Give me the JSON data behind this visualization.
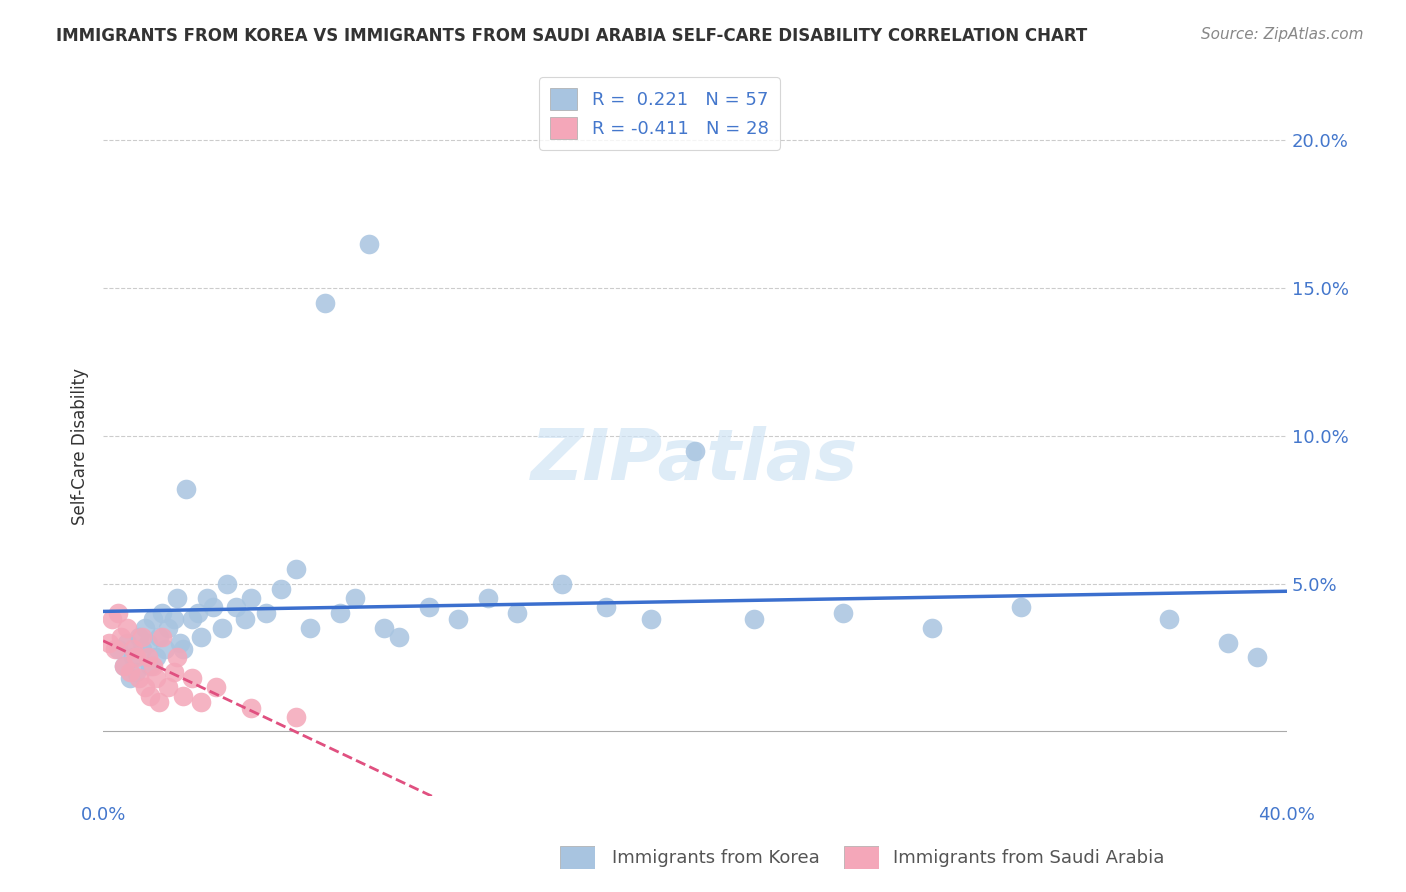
{
  "title": "IMMIGRANTS FROM KOREA VS IMMIGRANTS FROM SAUDI ARABIA SELF-CARE DISABILITY CORRELATION CHART",
  "source": "Source: ZipAtlas.com",
  "ylabel": "Self-Care Disability",
  "yticks": [
    0.0,
    0.05,
    0.1,
    0.15,
    0.2
  ],
  "ytick_labels": [
    "",
    "5.0%",
    "10.0%",
    "15.0%",
    "20.0%"
  ],
  "xlim": [
    0.0,
    0.4
  ],
  "ylim": [
    -0.022,
    0.215
  ],
  "legend_korea_R": "0.221",
  "legend_korea_N": "57",
  "legend_saudi_R": "-0.411",
  "legend_saudi_N": "28",
  "korea_color": "#a8c4e0",
  "saudi_color": "#f4a7b9",
  "korea_line_color": "#3b6fce",
  "saudi_line_color": "#e05080",
  "watermark": "ZIPatlas",
  "korea_x": [
    0.005,
    0.007,
    0.008,
    0.009,
    0.01,
    0.011,
    0.012,
    0.013,
    0.014,
    0.015,
    0.016,
    0.017,
    0.018,
    0.019,
    0.02,
    0.021,
    0.022,
    0.024,
    0.025,
    0.026,
    0.027,
    0.028,
    0.03,
    0.032,
    0.033,
    0.035,
    0.037,
    0.04,
    0.042,
    0.045,
    0.048,
    0.05,
    0.055,
    0.06,
    0.065,
    0.07,
    0.075,
    0.08,
    0.085,
    0.09,
    0.095,
    0.1,
    0.11,
    0.12,
    0.13,
    0.14,
    0.155,
    0.17,
    0.185,
    0.2,
    0.22,
    0.25,
    0.28,
    0.31,
    0.36,
    0.38,
    0.39
  ],
  "korea_y": [
    0.028,
    0.022,
    0.03,
    0.018,
    0.025,
    0.02,
    0.032,
    0.028,
    0.035,
    0.03,
    0.022,
    0.038,
    0.025,
    0.032,
    0.04,
    0.028,
    0.035,
    0.038,
    0.045,
    0.03,
    0.028,
    0.082,
    0.038,
    0.04,
    0.032,
    0.045,
    0.042,
    0.035,
    0.05,
    0.042,
    0.038,
    0.045,
    0.04,
    0.048,
    0.055,
    0.035,
    0.145,
    0.04,
    0.045,
    0.165,
    0.035,
    0.032,
    0.042,
    0.038,
    0.045,
    0.04,
    0.05,
    0.042,
    0.038,
    0.095,
    0.038,
    0.04,
    0.035,
    0.042,
    0.038,
    0.03,
    0.025
  ],
  "saudi_x": [
    0.002,
    0.003,
    0.004,
    0.005,
    0.006,
    0.007,
    0.008,
    0.009,
    0.01,
    0.011,
    0.012,
    0.013,
    0.014,
    0.015,
    0.016,
    0.017,
    0.018,
    0.019,
    0.02,
    0.022,
    0.024,
    0.025,
    0.027,
    0.03,
    0.033,
    0.038,
    0.05,
    0.065
  ],
  "saudi_y": [
    0.03,
    0.038,
    0.028,
    0.04,
    0.032,
    0.022,
    0.035,
    0.02,
    0.028,
    0.025,
    0.018,
    0.032,
    0.015,
    0.025,
    0.012,
    0.022,
    0.018,
    0.01,
    0.032,
    0.015,
    0.02,
    0.025,
    0.012,
    0.018,
    0.01,
    0.015,
    0.008,
    0.005
  ]
}
